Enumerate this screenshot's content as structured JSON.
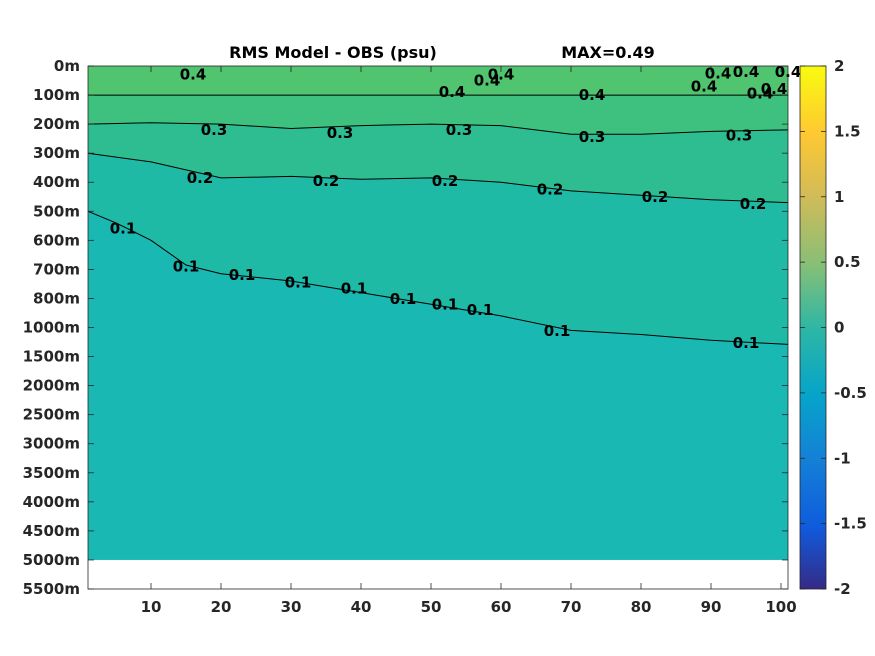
{
  "chart_data": {
    "type": "heatmap",
    "title": "RMS Model - OBS (psu)",
    "subtitle": "MAX=0.49",
    "xlabel": "",
    "ylabel": "",
    "x_ticks": [
      "10",
      "20",
      "30",
      "40",
      "50",
      "60",
      "70",
      "80",
      "90",
      "100"
    ],
    "xlim": [
      1,
      101
    ],
    "y_ticks": [
      "0m",
      "100m",
      "200m",
      "300m",
      "400m",
      "500m",
      "600m",
      "700m",
      "800m",
      "1000m",
      "1500m",
      "2000m",
      "2500m",
      "3000m",
      "3500m",
      "4000m",
      "4500m",
      "5000m",
      "5500m"
    ],
    "data_extent_bottom": "5000m",
    "colorbar": {
      "min": -2,
      "max": 2,
      "ticks": [
        "2",
        "1.5",
        "1",
        "0.5",
        "0",
        "-0.5",
        "-1",
        "-1.5",
        "-2"
      ],
      "colormap": "parula"
    },
    "fill_colors": {
      "0.4": "#50c46e",
      "0.3": "#3ec17e",
      "0.2": "#2dbd90",
      "0.1": "#1fbaa6",
      "0.0": "#19b8b3"
    },
    "contours": [
      {
        "level": 0.4,
        "label": "0.4",
        "path": [
          [
            1,
            "100m"
          ],
          [
            10,
            "100m"
          ],
          [
            20,
            "100m"
          ],
          [
            30,
            "100m"
          ],
          [
            40,
            "100m"
          ],
          [
            50,
            "100m"
          ],
          [
            60,
            "100m"
          ],
          [
            70,
            "100m"
          ],
          [
            80,
            "100m"
          ],
          [
            90,
            "100m"
          ],
          [
            101,
            "100m"
          ]
        ],
        "label_positions": [
          [
            16,
            "30m"
          ],
          [
            53,
            "90m"
          ],
          [
            58,
            "50m"
          ],
          [
            60,
            "30m"
          ],
          [
            73,
            "100m"
          ],
          [
            89,
            "70m"
          ],
          [
            91,
            "25m"
          ],
          [
            95,
            "20m"
          ],
          [
            97,
            "95m"
          ],
          [
            99,
            "80m"
          ],
          [
            101,
            "20m"
          ]
        ]
      },
      {
        "level": 0.3,
        "label": "0.3",
        "path": [
          [
            1,
            "200m"
          ],
          [
            10,
            "195m"
          ],
          [
            20,
            "200m"
          ],
          [
            30,
            "215m"
          ],
          [
            40,
            "205m"
          ],
          [
            50,
            "200m"
          ],
          [
            60,
            "205m"
          ],
          [
            70,
            "235m"
          ],
          [
            80,
            "235m"
          ],
          [
            90,
            "225m"
          ],
          [
            101,
            "220m"
          ]
        ],
        "label_positions": [
          [
            19,
            "220m"
          ],
          [
            37,
            "230m"
          ],
          [
            54,
            "220m"
          ],
          [
            73,
            "245m"
          ],
          [
            94,
            "240m"
          ]
        ]
      },
      {
        "level": 0.2,
        "label": "0.2",
        "path": [
          [
            1,
            "300m"
          ],
          [
            10,
            "330m"
          ],
          [
            20,
            "385m"
          ],
          [
            30,
            "380m"
          ],
          [
            40,
            "390m"
          ],
          [
            50,
            "385m"
          ],
          [
            60,
            "400m"
          ],
          [
            70,
            "430m"
          ],
          [
            80,
            "445m"
          ],
          [
            90,
            "460m"
          ],
          [
            101,
            "470m"
          ]
        ],
        "label_positions": [
          [
            17,
            "385m"
          ],
          [
            35,
            "395m"
          ],
          [
            52,
            "395m"
          ],
          [
            67,
            "425m"
          ],
          [
            82,
            "450m"
          ],
          [
            96,
            "475m"
          ]
        ]
      },
      {
        "level": 0.1,
        "label": "0.1",
        "path": [
          [
            1,
            "500m"
          ],
          [
            5,
            "540m"
          ],
          [
            10,
            "600m"
          ],
          [
            15,
            "685m"
          ],
          [
            20,
            "715m"
          ],
          [
            30,
            "740m"
          ],
          [
            40,
            "780m"
          ],
          [
            50,
            "840m"
          ],
          [
            60,
            "920m"
          ],
          [
            70,
            "1050m"
          ],
          [
            80,
            "1120m"
          ],
          [
            90,
            "1220m"
          ],
          [
            101,
            "1290m"
          ]
        ],
        "label_positions": [
          [
            6,
            "560m"
          ],
          [
            15,
            "690m"
          ],
          [
            23,
            "720m"
          ],
          [
            31,
            "745m"
          ],
          [
            39,
            "765m"
          ],
          [
            46,
            "805m"
          ],
          [
            52,
            "840m"
          ],
          [
            57,
            "880m"
          ],
          [
            68,
            "1060m"
          ],
          [
            95,
            "1270m"
          ]
        ]
      }
    ]
  }
}
